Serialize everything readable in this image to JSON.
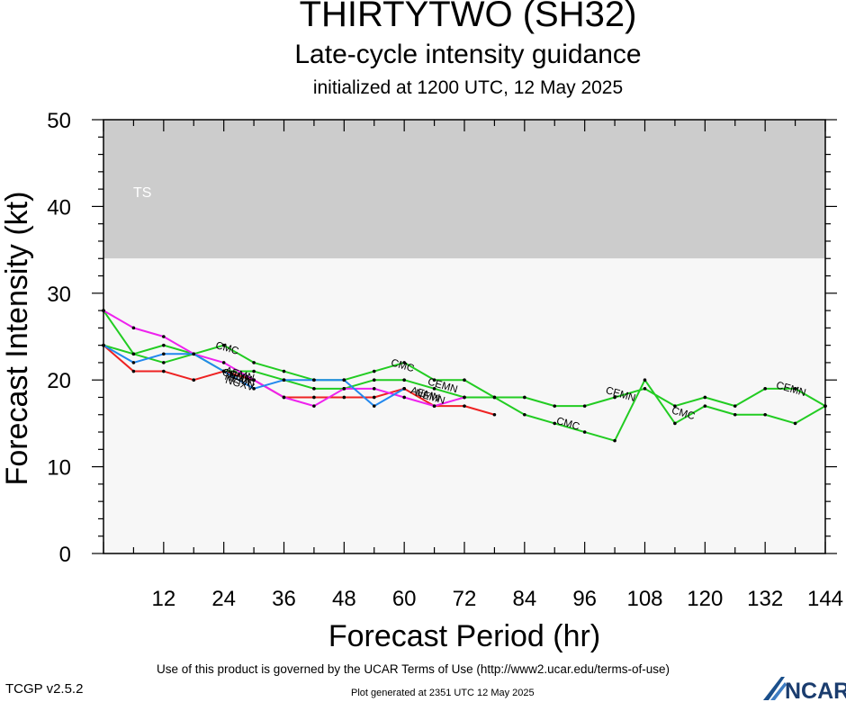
{
  "header": {
    "title": "THIRTYTWO (SH32)",
    "subtitle": "Late-cycle intensity guidance",
    "init_line": "initialized at 1200 UTC, 12 May 2025"
  },
  "footer": {
    "terms": "Use of this product is governed by the UCAR Terms of Use (http://www2.ucar.edu/terms-of-use)",
    "version": "TCGP v2.5.2",
    "generated": "Plot generated at 2351 UTC   12 May 2025",
    "logo_text": "NCAR"
  },
  "chart_data": {
    "type": "line",
    "title": "THIRTYTWO (SH32)",
    "xlabel": "Forecast Period (hr)",
    "ylabel": "Forecast Intensity (kt)",
    "xlim": [
      0,
      144
    ],
    "ylim": [
      0,
      50
    ],
    "xticks": [
      12,
      24,
      36,
      48,
      60,
      72,
      84,
      96,
      108,
      120,
      132,
      144
    ],
    "yticks": [
      0,
      10,
      20,
      30,
      40,
      50
    ],
    "bands": [
      {
        "label": "TS",
        "y0": 34,
        "y1": 50,
        "color": "#cccccc"
      },
      {
        "label": "",
        "y0": 0,
        "y1": 34,
        "color": "#f7f7f7"
      }
    ],
    "series": [
      {
        "name": "CMC",
        "color": "#22cc22",
        "x": [
          0,
          6,
          12,
          18,
          24,
          30,
          36,
          42,
          48,
          54,
          60,
          66,
          72,
          78,
          84,
          90,
          96,
          102,
          108,
          114,
          120,
          126,
          132,
          138,
          144
        ],
        "y": [
          24,
          23,
          24,
          23,
          24,
          22,
          21,
          20,
          20,
          21,
          22,
          20,
          20,
          18,
          16,
          15,
          14,
          13,
          20,
          15,
          17,
          16,
          16,
          15,
          17
        ],
        "labels": [
          {
            "x": 24.5,
            "y": 23.3
          },
          {
            "x": 59.5,
            "y": 21.3
          },
          {
            "x": 92.5,
            "y": 14.6
          },
          {
            "x": 115.5,
            "y": 15.8
          }
        ]
      },
      {
        "name": "CEMN",
        "color": "#22cc22",
        "x": [
          0,
          6,
          12,
          18,
          24,
          30,
          36,
          42,
          48,
          54,
          60,
          66,
          72,
          78,
          84,
          90,
          96,
          102,
          108,
          114,
          120,
          126,
          132,
          138,
          144
        ],
        "y": [
          28,
          23,
          22,
          23,
          21,
          21,
          20,
          19,
          19,
          20,
          20,
          19,
          18,
          18,
          18,
          17,
          17,
          18,
          19,
          17,
          18,
          17,
          19,
          19,
          17
        ],
        "labels": [
          {
            "x": 26.5,
            "y": 20.1
          },
          {
            "x": 67.5,
            "y": 19.0
          },
          {
            "x": 103,
            "y": 18.0
          },
          {
            "x": 137,
            "y": 18.6
          }
        ]
      },
      {
        "name": "NEMN",
        "color": "#ee2222",
        "x": [
          0,
          6,
          12,
          18,
          24,
          30,
          36,
          42,
          48,
          54,
          60,
          66,
          72,
          78
        ],
        "y": [
          24,
          21,
          21,
          20,
          21,
          20,
          18,
          18,
          18,
          18,
          19,
          17,
          17,
          16
        ],
        "labels": [
          {
            "x": 27,
            "y": 19.6
          },
          {
            "x": 65,
            "y": 17.7
          }
        ]
      },
      {
        "name": "AEMN",
        "color": "#ee22ee",
        "x": [
          0,
          6,
          12,
          18,
          24,
          30,
          36,
          42,
          48,
          54,
          60,
          66,
          72
        ],
        "y": [
          28,
          26,
          25,
          23,
          22,
          20,
          18,
          17,
          19,
          19,
          18,
          17,
          18
        ],
        "labels": [
          {
            "x": 27,
            "y": 20.3
          },
          {
            "x": 64,
            "y": 18.0
          }
        ]
      },
      {
        "name": "NGX",
        "color": "#2288ee",
        "x": [
          0,
          6,
          12,
          18,
          24,
          30,
          36,
          42,
          48,
          54,
          60
        ],
        "y": [
          24,
          22,
          23,
          23,
          21,
          19,
          20,
          20,
          20,
          17,
          19
        ],
        "labels": [
          {
            "x": 27,
            "y": 19.9
          }
        ]
      },
      {
        "name": "NGXV",
        "color": "#000000",
        "x": [],
        "y": [],
        "labels": [
          {
            "x": 27,
            "y": 19.2
          }
        ]
      }
    ]
  }
}
